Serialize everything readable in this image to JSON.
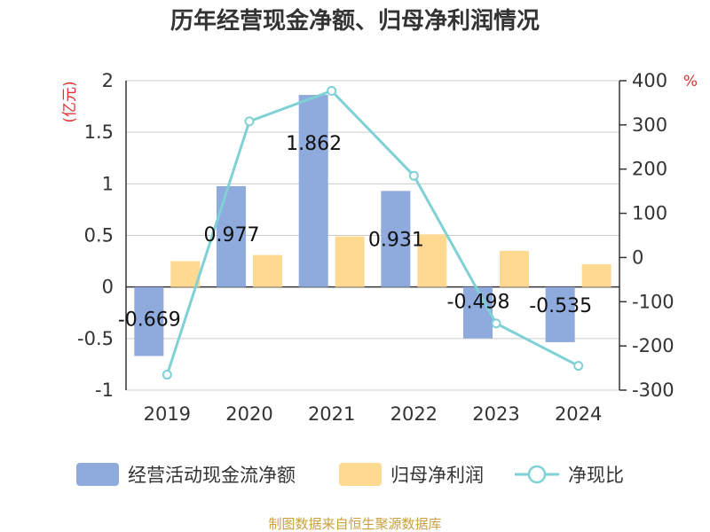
{
  "chart_data": {
    "type": "bar+line",
    "title": "历年经营现金净额、归母净利润情况",
    "categories": [
      "2019",
      "2020",
      "2021",
      "2022",
      "2023",
      "2024"
    ],
    "left_axis": {
      "unit": "(亿元)",
      "min": -1,
      "max": 2,
      "ticks": [
        2,
        1.5,
        1,
        0.5,
        0,
        -0.5,
        -1
      ],
      "tick_labels": [
        "2",
        "1.5",
        "1",
        "0.5",
        "0",
        "-0.5",
        "-1"
      ]
    },
    "right_axis": {
      "unit": "%",
      "min": -300,
      "max": 400,
      "ticks": [
        400,
        300,
        200,
        100,
        0,
        -100,
        -200,
        -300
      ],
      "tick_labels": [
        "400",
        "300",
        "200",
        "100",
        "0",
        "-100",
        "-200",
        "-300"
      ]
    },
    "series": [
      {
        "name": "经营活动现金流净额",
        "type": "bar",
        "axis": "left",
        "color": "#8faadc",
        "values": [
          -0.669,
          0.977,
          1.862,
          0.931,
          -0.498,
          -0.535
        ],
        "labels": [
          "-0.669",
          "0.977",
          "1.862",
          "0.931",
          "-0.498",
          "-0.535"
        ]
      },
      {
        "name": "归母净利润",
        "type": "bar",
        "axis": "left",
        "color": "#ffd891",
        "values": [
          0.25,
          0.31,
          0.49,
          0.51,
          0.35,
          0.22
        ]
      },
      {
        "name": "净现比",
        "type": "line",
        "axis": "right",
        "color": "#7fd1d6",
        "values": [
          -265,
          308,
          377,
          185,
          -149,
          -245
        ]
      }
    ]
  },
  "source": "制图数据来自恒生聚源数据库",
  "colors": {
    "left_unit": "#e03030",
    "source": "#c8a040",
    "grid": "#cccccc"
  }
}
